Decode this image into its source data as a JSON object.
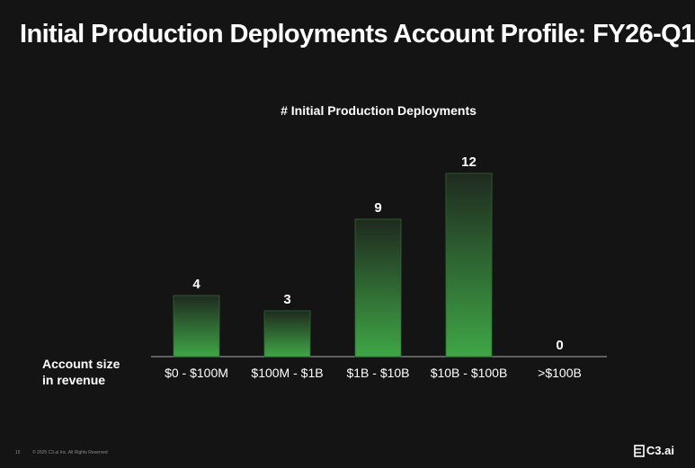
{
  "slide": {
    "title": "Initial Production Deployments Account Profile: FY26-Q1",
    "axis_description_line1": "Account size",
    "axis_description_line2": "in revenue",
    "page_number": "15",
    "copyright": "© 2025 C3.ai Inc. All Rights Reserved",
    "logo_text": "C3.ai"
  },
  "colors": {
    "background": "#141414",
    "bar_top": "#1f2a1f",
    "bar_bottom": "#3fa646",
    "bar_edge": "#2e6b33",
    "axis_line": "#8c8c8c"
  },
  "chart_data": {
    "type": "bar",
    "title": "# Initial Production Deployments",
    "categories": [
      "$0 - $100M",
      "$100M - $1B",
      "$1B - $10B",
      "$10B - $100B",
      ">$100B"
    ],
    "values": [
      4,
      3,
      9,
      12,
      0
    ],
    "data_labels": [
      "4",
      "3",
      "9",
      "12",
      "0"
    ],
    "xlabel": "Account size in revenue",
    "ylabel": "",
    "ylim": [
      0,
      12
    ],
    "grid": false,
    "legend": "none"
  }
}
